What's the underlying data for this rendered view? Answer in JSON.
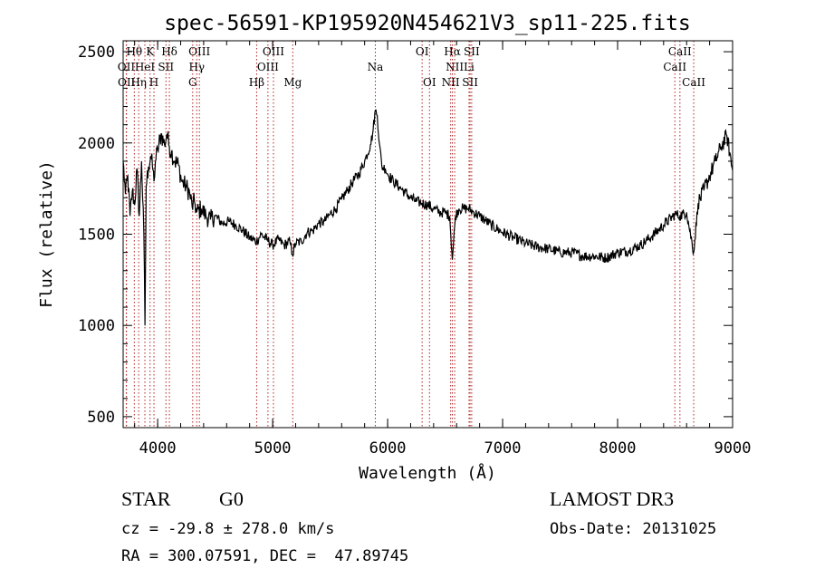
{
  "chart_data": {
    "type": "line",
    "title": "spec-56591-KP195920N454621V3_sp11-225.fits",
    "xlabel": "Wavelength (Å)",
    "ylabel": "Flux (relative)",
    "xlim": [
      3700,
      9000
    ],
    "ylim": [
      440,
      2560
    ],
    "xticks": [
      4000,
      5000,
      6000,
      7000,
      8000,
      9000
    ],
    "yticks": [
      500,
      1000,
      1500,
      2000,
      2500
    ],
    "series": [
      {
        "name": "spectrum",
        "x": [
          3700,
          3720,
          3740,
          3760,
          3780,
          3800,
          3820,
          3840,
          3860,
          3880,
          3890,
          3900,
          3920,
          3940,
          3960,
          3968,
          3980,
          4000,
          4030,
          4060,
          4080,
          4102,
          4120,
          4150,
          4180,
          4210,
          4250,
          4280,
          4300,
          4320,
          4340,
          4380,
          4420,
          4460,
          4500,
          4560,
          4620,
          4680,
          4740,
          4800,
          4861,
          4900,
          4950,
          5000,
          5050,
          5100,
          5150,
          5172,
          5200,
          5250,
          5300,
          5350,
          5400,
          5450,
          5500,
          5550,
          5600,
          5650,
          5700,
          5750,
          5800,
          5850,
          5870,
          5893,
          5910,
          5930,
          5950,
          5980,
          6000,
          6050,
          6100,
          6150,
          6200,
          6250,
          6300,
          6350,
          6400,
          6450,
          6500,
          6540,
          6563,
          6590,
          6620,
          6660,
          6700,
          6750,
          6800,
          6900,
          7000,
          7100,
          7200,
          7300,
          7400,
          7500,
          7600,
          7700,
          7800,
          7900,
          8000,
          8100,
          8200,
          8300,
          8400,
          8500,
          8542,
          8600,
          8662,
          8700,
          8750,
          8800,
          8850,
          8900,
          8950,
          9000
        ],
        "values": [
          1900,
          1720,
          1820,
          1600,
          1740,
          1660,
          1860,
          1600,
          1900,
          1500,
          1000,
          1760,
          1870,
          1930,
          1850,
          1790,
          1900,
          1960,
          2050,
          1990,
          2050,
          1980,
          1950,
          1900,
          1880,
          1790,
          1760,
          1720,
          1650,
          1680,
          1620,
          1640,
          1600,
          1580,
          1600,
          1560,
          1570,
          1550,
          1520,
          1480,
          1460,
          1500,
          1470,
          1440,
          1470,
          1440,
          1460,
          1390,
          1450,
          1460,
          1510,
          1520,
          1560,
          1570,
          1610,
          1640,
          1690,
          1740,
          1790,
          1830,
          1900,
          1990,
          2050,
          2180,
          2150,
          1990,
          1870,
          1860,
          1830,
          1790,
          1760,
          1730,
          1700,
          1680,
          1670,
          1660,
          1640,
          1620,
          1620,
          1600,
          1360,
          1600,
          1640,
          1640,
          1640,
          1620,
          1600,
          1550,
          1510,
          1480,
          1450,
          1430,
          1420,
          1400,
          1400,
          1380,
          1380,
          1370,
          1400,
          1410,
          1440,
          1490,
          1550,
          1610,
          1600,
          1620,
          1400,
          1670,
          1740,
          1820,
          1900,
          1980,
          2040,
          1850
        ]
      }
    ],
    "line_labels": [
      {
        "name": "Hθ",
        "wl": 3797,
        "row": 0
      },
      {
        "name": "OII",
        "wl": 3727,
        "row": 1
      },
      {
        "name": "OII",
        "wl": 3729,
        "row": 2
      },
      {
        "name": "K",
        "wl": 3934,
        "row": 0
      },
      {
        "name": "HeI",
        "wl": 3889,
        "row": 1
      },
      {
        "name": "Hη",
        "wl": 3835,
        "row": 2
      },
      {
        "name": "Hδ",
        "wl": 4102,
        "row": 0
      },
      {
        "name": "SII",
        "wl": 4072,
        "row": 1
      },
      {
        "name": "H",
        "wl": 3968,
        "row": 2
      },
      {
        "name": "OIII",
        "wl": 4363,
        "row": 0
      },
      {
        "name": "Hγ",
        "wl": 4340,
        "row": 1
      },
      {
        "name": "G",
        "wl": 4305,
        "row": 2
      },
      {
        "name": "OIII",
        "wl": 5007,
        "row": 0
      },
      {
        "name": "OIII",
        "wl": 4959,
        "row": 1
      },
      {
        "name": "Hβ",
        "wl": 4861,
        "row": 2
      },
      {
        "name": "Mg",
        "wl": 5175,
        "row": 2
      },
      {
        "name": "Na",
        "wl": 5893,
        "row": 1
      },
      {
        "name": "OI",
        "wl": 6300,
        "row": 0
      },
      {
        "name": "OI",
        "wl": 6364,
        "row": 2
      },
      {
        "name": "Hα",
        "wl": 6563,
        "row": 0
      },
      {
        "name": "NII",
        "wl": 6583,
        "row": 1
      },
      {
        "name": "NII",
        "wl": 6548,
        "row": 2
      },
      {
        "name": "SII",
        "wl": 6731,
        "row": 0
      },
      {
        "name": "Li",
        "wl": 6708,
        "row": 1
      },
      {
        "name": "SII",
        "wl": 6717,
        "row": 2
      },
      {
        "name": "CaII",
        "wl": 8542,
        "row": 0
      },
      {
        "name": "CaII",
        "wl": 8498,
        "row": 1
      },
      {
        "name": "CaII",
        "wl": 8662,
        "row": 2
      }
    ],
    "line_color": "#b22222"
  },
  "info": {
    "object_class": "STAR",
    "subclass": "G0",
    "survey": "LAMOST DR3",
    "redshift": "cz = -29.8 ± 278.0 km/s",
    "obs_date": "Obs-Date: 20131025",
    "coordinates": "RA = 300.07591, DEC =  47.89745"
  }
}
